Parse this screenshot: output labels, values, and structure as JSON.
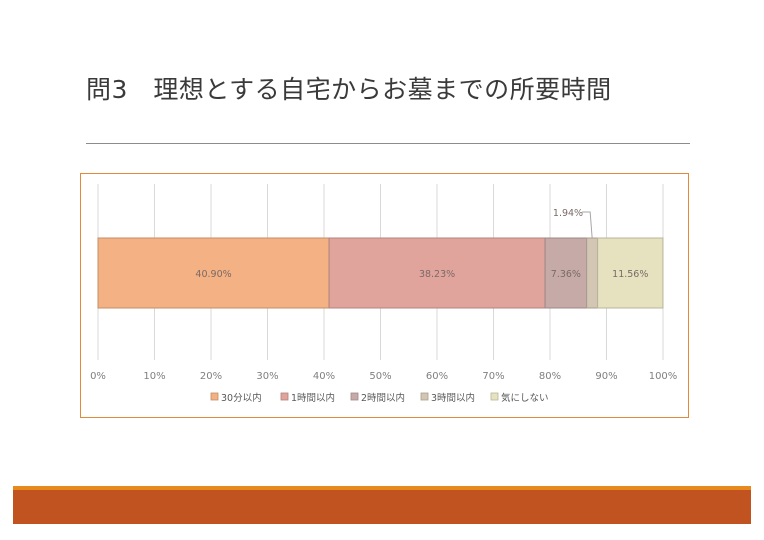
{
  "slide": {
    "title": "問3　理想とする自宅からお墓までの所要時間"
  },
  "chart_data": {
    "type": "bar",
    "orientation": "horizontal",
    "stacked": "percent",
    "categories": [
      ""
    ],
    "series": [
      {
        "name": "30分以内",
        "values": [
          40.9
        ],
        "label": "40.90%",
        "color": "#f4b183"
      },
      {
        "name": "1時間以内",
        "values": [
          38.23
        ],
        "label": "38.23%",
        "color": "#e0a49c"
      },
      {
        "name": "2時間以内",
        "values": [
          7.36
        ],
        "label": "7.36%",
        "color": "#c6aaa8"
      },
      {
        "name": "3時間以内",
        "values": [
          1.94
        ],
        "label": "1.94%",
        "color": "#d3c6b2"
      },
      {
        "name": "気にしない",
        "values": [
          11.56
        ],
        "label": "11.56%",
        "color": "#e6e2c0"
      }
    ],
    "x_ticks": [
      "0%",
      "10%",
      "20%",
      "30%",
      "40%",
      "50%",
      "60%",
      "70%",
      "80%",
      "90%",
      "100%"
    ],
    "xlim": [
      0,
      100
    ],
    "grid": true,
    "legend": "bottom"
  }
}
